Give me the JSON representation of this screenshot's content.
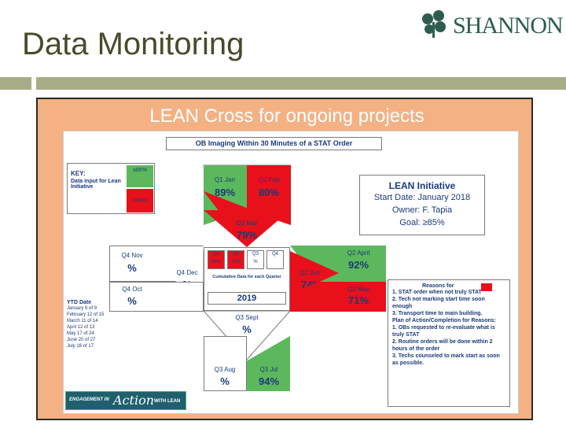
{
  "title": "Data Monitoring",
  "logo": {
    "icon": "shamrock-logo-icon",
    "text": "SHANNON",
    "color": "#2e5d4f"
  },
  "slide": {
    "heading": "LEAN Cross for ongoing projects",
    "chart_title": "OB Imaging Within 30 Minutes of a STAT Order",
    "key": {
      "label": "KEY:",
      "desc": "Data input for Lean Initiative",
      "good": "≥85%",
      "bad": "<85%"
    },
    "quarters": {
      "q1_jan": {
        "label": "Q1 Jan",
        "value": "89%",
        "status": "green"
      },
      "q1_feb": {
        "label": "Q1 Feb",
        "value": "80%",
        "status": "red"
      },
      "q1_mar": {
        "label": "Q1 Mar",
        "value": "79%",
        "status": "red"
      },
      "q2_april": {
        "label": "Q2 April",
        "value": "92%",
        "status": "green"
      },
      "q2_jun": {
        "label": "Q2 Jun",
        "value": "74%",
        "status": "red"
      },
      "q2_may": {
        "label": "Q2 May",
        "value": "71%",
        "status": "red"
      },
      "q3_sept": {
        "label": "Q3 Sept",
        "value": "%"
      },
      "q3_aug": {
        "label": "Q3 Aug",
        "value": "%"
      },
      "q3_jul": {
        "label": "Q3 Jul",
        "value": "94%",
        "status": "green"
      },
      "q4_nov": {
        "label": "Q4 Nov",
        "value": "%"
      },
      "q4_dec": {
        "label": "Q4 Dec",
        "value": "%"
      },
      "q4_oct": {
        "label": "Q4 Oct",
        "value": "%"
      }
    },
    "cumulative": {
      "headers": [
        "Q1",
        "Q2",
        "Q3",
        "Q4"
      ],
      "values": [
        "83%",
        "79%",
        "%",
        ""
      ],
      "caption": "Cumulative Data for each Quarter",
      "year": "2019"
    },
    "lean_initiative": {
      "heading": "LEAN Initiative",
      "start": "Start Date: January 2018",
      "owner": "Owner: F. Tapia",
      "goal": "Goal: ≥85%"
    },
    "ytd": {
      "heading": "YTD Date",
      "rows": [
        "January 8 of 9",
        "February 12 of 15",
        "March 11 of 14",
        "April 12 of 13",
        "May 17 of 24",
        "June 20 of 27",
        "July 16 of 17"
      ]
    },
    "reasons": {
      "heading": "Reasons for",
      "items": [
        "1. STAT order when not truly STAT",
        "2. Tech not marking start time soon enough",
        "3. Transport time to main building."
      ],
      "plan_heading": "Plan of Action/Completion for Reasons:",
      "plan_items": [
        "1. OBs requested to re-evaluate what is truly STAT",
        "2. Routine orders will be done within 2 hours of the order",
        "3. Techs counseled to mark start as soon as possible."
      ]
    },
    "badge": {
      "line1": "ENGAGEMENT IN",
      "script": "Action",
      "line2": "WITH LEAN"
    }
  },
  "colors": {
    "green": "#5cb85c",
    "red": "#e8101a",
    "slide_bg": "#f4b183",
    "rule": "#a9ad86"
  }
}
